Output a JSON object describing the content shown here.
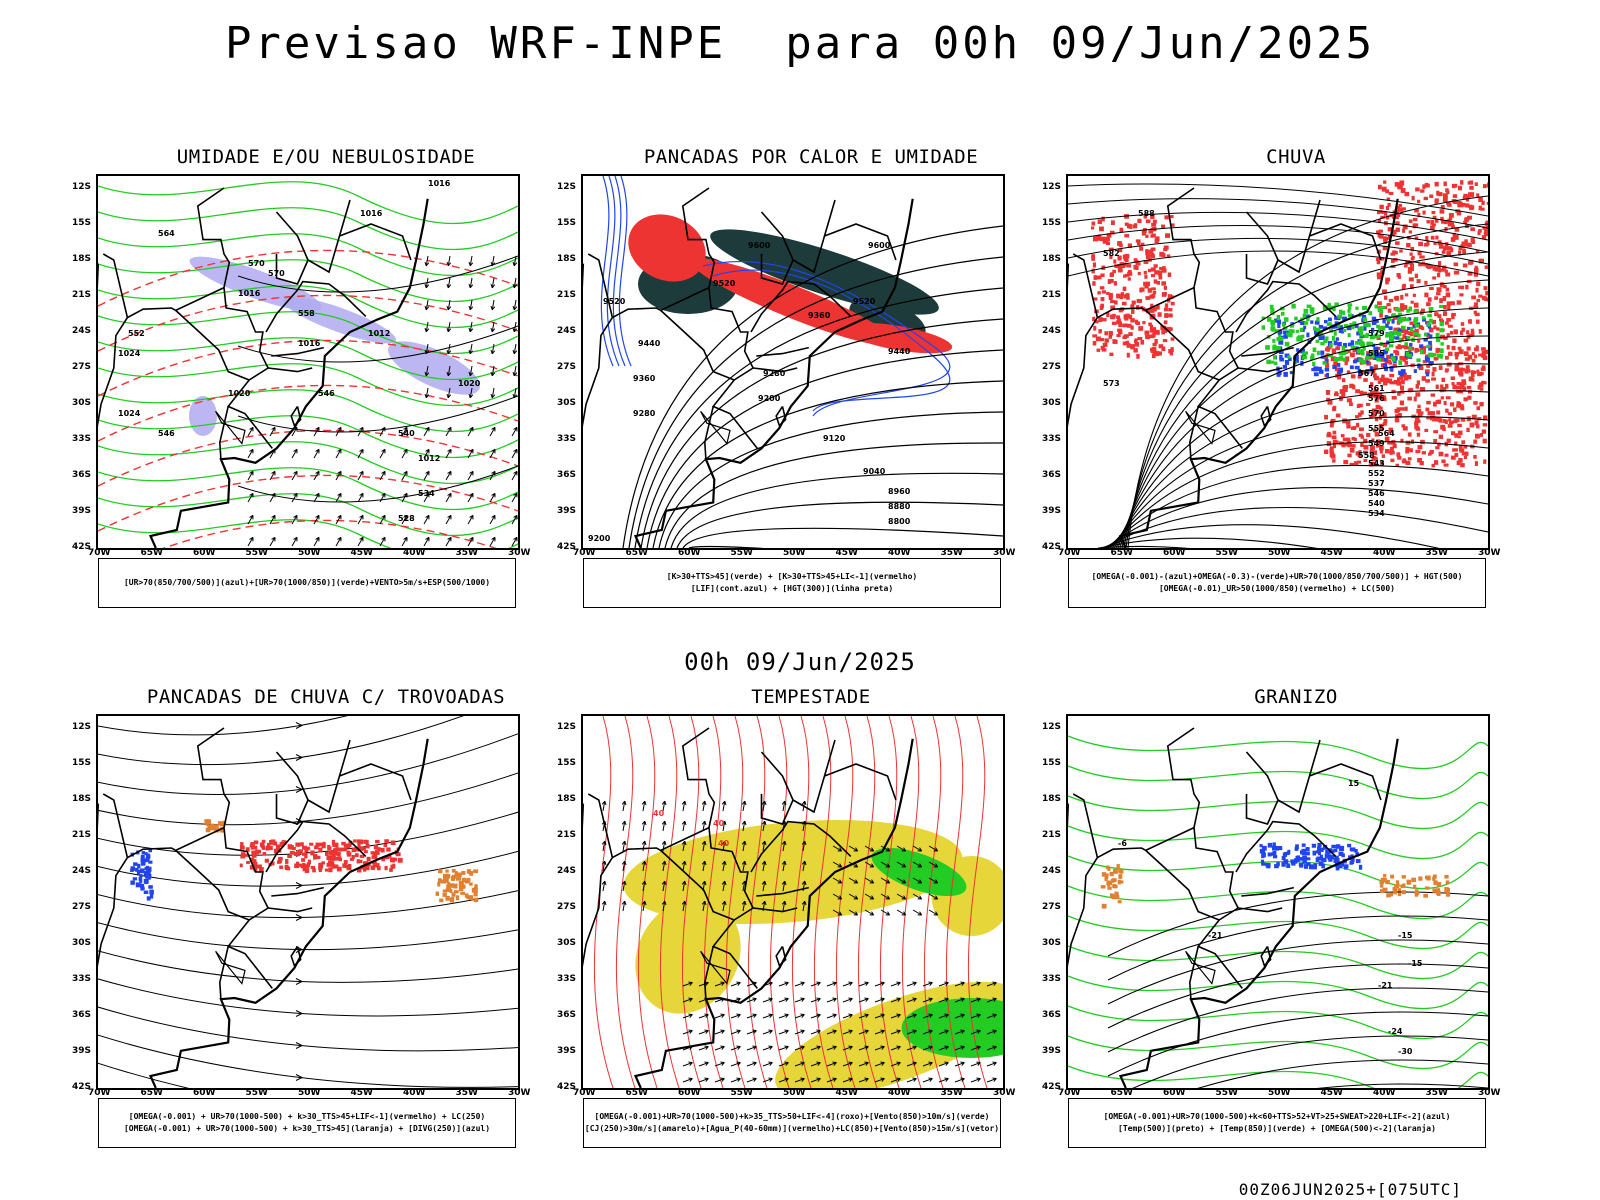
{
  "main_title": "Previsao WRF-INPE  para 00h 09/Jun/2025",
  "mid_title": "00h 09/Jun/2025",
  "footer": "00Z06JUN2025+[075UTC]",
  "lat_labels": [
    "12S",
    "15S",
    "18S",
    "21S",
    "24S",
    "27S",
    "30S",
    "33S",
    "36S",
    "39S",
    "42S"
  ],
  "lon_labels": [
    "70W",
    "65W",
    "60W",
    "55W",
    "50W",
    "45W",
    "40W",
    "35W",
    "30W"
  ],
  "colors": {
    "green": "#22cc22",
    "red": "#ee3333",
    "blue": "#2244ee",
    "lavender": "#b0aaf0",
    "darkteal": "#1e3b3b",
    "yellow": "#e6d63a",
    "orange": "#e08030",
    "black": "#000000"
  },
  "panels": [
    {
      "id": "umidade",
      "title": "UMIDADE E/OU NEBULOSIDADE",
      "legend": [
        "[UR>70(850/700/500)](azul)+[UR>70(1000/850)](verde)+VENTO>5m/s+ESP(500/1000)"
      ],
      "contour_labels": [
        "1016",
        "1016",
        "1016",
        "1020",
        "1012",
        "1016",
        "1020",
        "1024",
        "1024",
        "1012",
        "570",
        "570",
        "564",
        "558",
        "552",
        "546",
        "540",
        "534",
        "528",
        "546"
      ]
    },
    {
      "id": "pancadas-calor",
      "title": "PANCADAS POR CALOR E UMIDADE",
      "legend": [
        "[K>30+TTS>45](verde) + [K>30+TTS>45+LI<-1](vermelho)",
        "[LIF](cont.azul) + [HGT(300)](linha preta)"
      ],
      "contour_labels": [
        "9600",
        "9600",
        "9520",
        "9520",
        "9440",
        "9440",
        "9360",
        "9360",
        "9280",
        "9280",
        "9200",
        "9120",
        "9040",
        "8960",
        "8880",
        "8800",
        "9200",
        "9520"
      ]
    },
    {
      "id": "chuva",
      "title": "CHUVA",
      "legend": [
        "[OMEGA(-0.001)-(azul)+OMEGA(-0.3)-(verde)+UR>70(1000/850/700/500)] + HGT(500)",
        "[OMEGA(-0.01)_UR>50(1000/850)(vermelho) + LC(500)"
      ],
      "contour_labels": [
        "588",
        "582",
        "576",
        "570",
        "564",
        "558",
        "552",
        "546",
        "540",
        "534",
        "573",
        "579",
        "585",
        "567",
        "561",
        "555",
        "549",
        "543",
        "537"
      ]
    },
    {
      "id": "trovoadas",
      "title": "PANCADAS DE CHUVA C/ TROVOADAS",
      "legend": [
        "[OMEGA(-0.001) + UR>70(1000-500) + k>30_TTS>45+LIF<-1](vermelho) + LC(250)",
        "[OMEGA(-0.001) + UR>70(1000-500) + k>30_TTS>45](laranja) + [DIVG(250)](azul)"
      ],
      "contour_labels": []
    },
    {
      "id": "tempestade",
      "title": "TEMPESTADE",
      "legend": [
        "[OMEGA(-0.001)+UR>70(1000-500)+k>35_TTS>50+LIF<-4](roxo)+[Vento(850)>10m/s](verde)",
        "[CJ(250)>30m/s](amarelo)+[Agua_P(40-60mm)](vermelho)+LC(850)+[Vento(850)>15m/s](vetor)"
      ],
      "contour_labels": [
        "40",
        "40",
        "40"
      ]
    },
    {
      "id": "granizo",
      "title": "GRANIZO",
      "legend": [
        "[OMEGA(-0.001)+UR>70(1000-500)+k<60+TTS>52+VT>25+SWEAT>220+LIF<-2](azul)",
        "[Temp(500)](preto) + [Temp(850)](verde) + [OMEGA(500)<-2](laranja)"
      ],
      "contour_labels": [
        "-15",
        "-15",
        "-21",
        "-21",
        "-24",
        "-30",
        "-6",
        "15"
      ]
    }
  ]
}
